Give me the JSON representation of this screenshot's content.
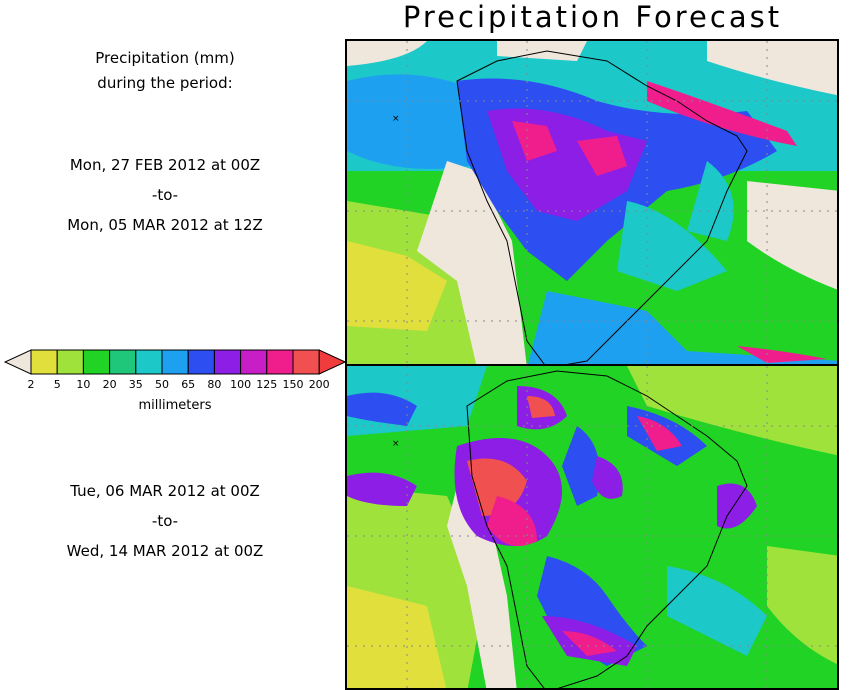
{
  "title": "Precipitation Forecast",
  "heading_line1": "Precipitation (mm)",
  "heading_line2": "during the period:",
  "period1": {
    "start": "Mon, 27 FEB 2012 at 00Z",
    "sep": "-to-",
    "end": "Mon, 05 MAR 2012 at 12Z"
  },
  "period2": {
    "start": "Tue, 06 MAR 2012 at 00Z",
    "sep": "-to-",
    "end": "Wed, 14 MAR 2012 at 00Z"
  },
  "legend": {
    "unit": "millimeters",
    "ticks": [
      "2",
      "5",
      "10",
      "20",
      "35",
      "50",
      "65",
      "80",
      "100",
      "125",
      "150",
      "200"
    ],
    "colors": [
      "#e1df3c",
      "#a0e23c",
      "#21d324",
      "#1fc77a",
      "#1cc8c8",
      "#1ea0f0",
      "#2d4ef0",
      "#8c1ee6",
      "#c81ec8",
      "#f01e8c",
      "#f05050"
    ],
    "low_color": "#efe6dc",
    "high_color": "#f03c3c"
  },
  "map_labels": {
    "top_marker": "×",
    "bottom_marker": "×"
  }
}
